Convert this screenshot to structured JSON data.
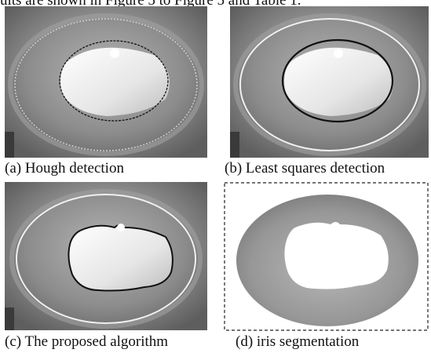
{
  "body_text_top": "ults are shown in Figure 5 to Figure 5 and Table 1.",
  "captions": {
    "a": "(a) Hough detection",
    "b": "(b) Least squares detection",
    "c": "(c) The proposed algorithm",
    "d": "(d) iris segmentation"
  },
  "colors": {
    "background_gray": "#8a8a8a",
    "iris_gray": "#9a9a9a",
    "pupil_white": "#f2f2f2",
    "outer_boundary": "#e8e8e8",
    "inner_boundary": "#111111"
  }
}
